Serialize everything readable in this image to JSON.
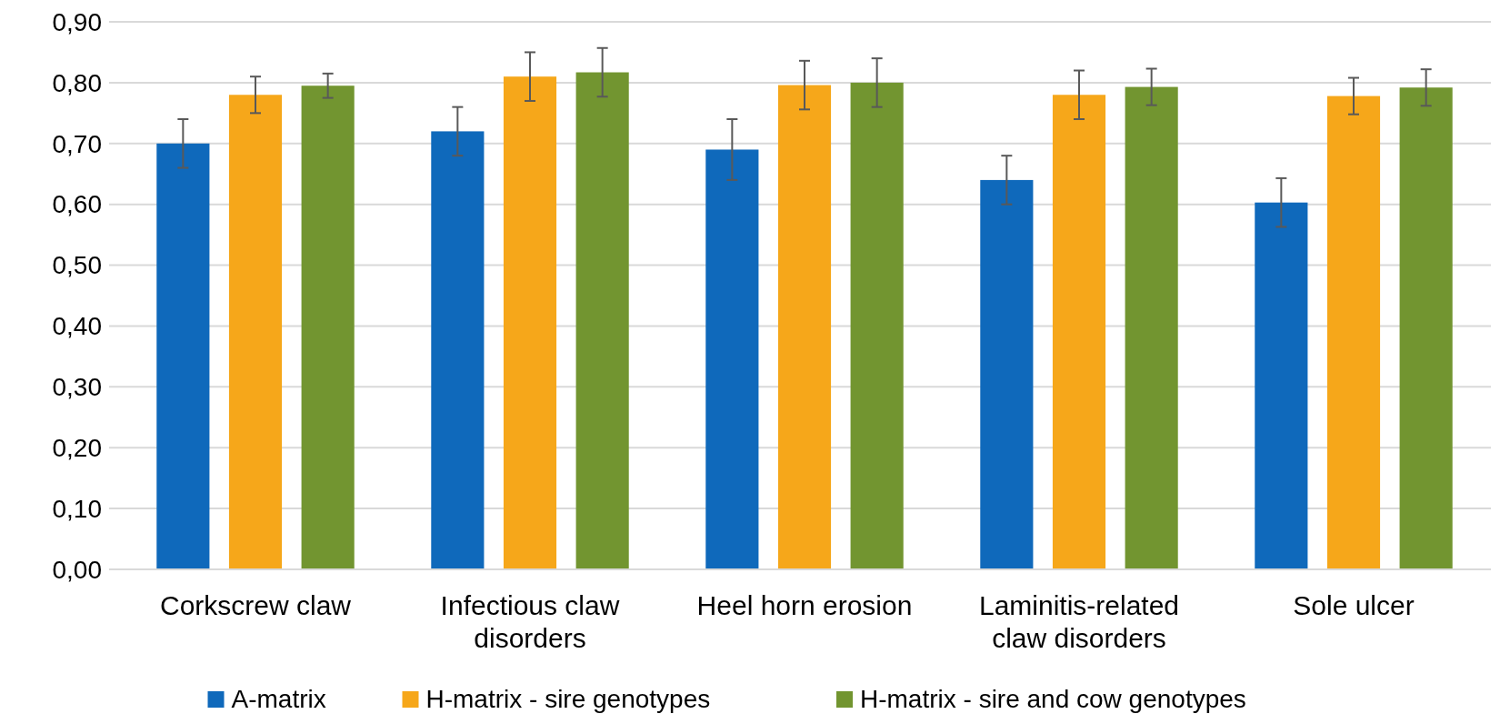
{
  "chart_data": {
    "type": "bar",
    "categories": [
      "Corkscrew claw",
      "Infectious claw disorders",
      "Heel horn erosion",
      "Laminitis-related claw disorders",
      "Sole ulcer"
    ],
    "series": [
      {
        "name": "A-matrix",
        "color": "#0f69bb",
        "values": [
          0.7,
          0.72,
          0.69,
          0.64,
          0.603
        ],
        "errors": [
          0.04,
          0.04,
          0.05,
          0.04,
          0.04
        ]
      },
      {
        "name": "H-matrix - sire genotypes",
        "color": "#f6a71a",
        "values": [
          0.78,
          0.81,
          0.796,
          0.78,
          0.778
        ],
        "errors": [
          0.03,
          0.04,
          0.04,
          0.04,
          0.03
        ]
      },
      {
        "name": "H-matrix - sire and cow genotypes",
        "color": "#729530",
        "values": [
          0.795,
          0.817,
          0.8,
          0.793,
          0.792
        ],
        "errors": [
          0.02,
          0.04,
          0.04,
          0.03,
          0.03
        ]
      }
    ],
    "ylim": [
      0,
      0.9
    ],
    "yticks": [
      {
        "value": 0,
        "label": "0,00"
      },
      {
        "value": 0.1,
        "label": "0,10"
      },
      {
        "value": 0.2,
        "label": "0,20"
      },
      {
        "value": 0.3,
        "label": "0,30"
      },
      {
        "value": 0.4,
        "label": "0,40"
      },
      {
        "value": 0.5,
        "label": "0,50"
      },
      {
        "value": 0.6,
        "label": "0,60"
      },
      {
        "value": 0.7,
        "label": "0,70"
      },
      {
        "value": 0.8,
        "label": "0,80"
      },
      {
        "value": 0.9,
        "label": "0,90"
      }
    ],
    "grid": "y",
    "legend": "bottom"
  }
}
